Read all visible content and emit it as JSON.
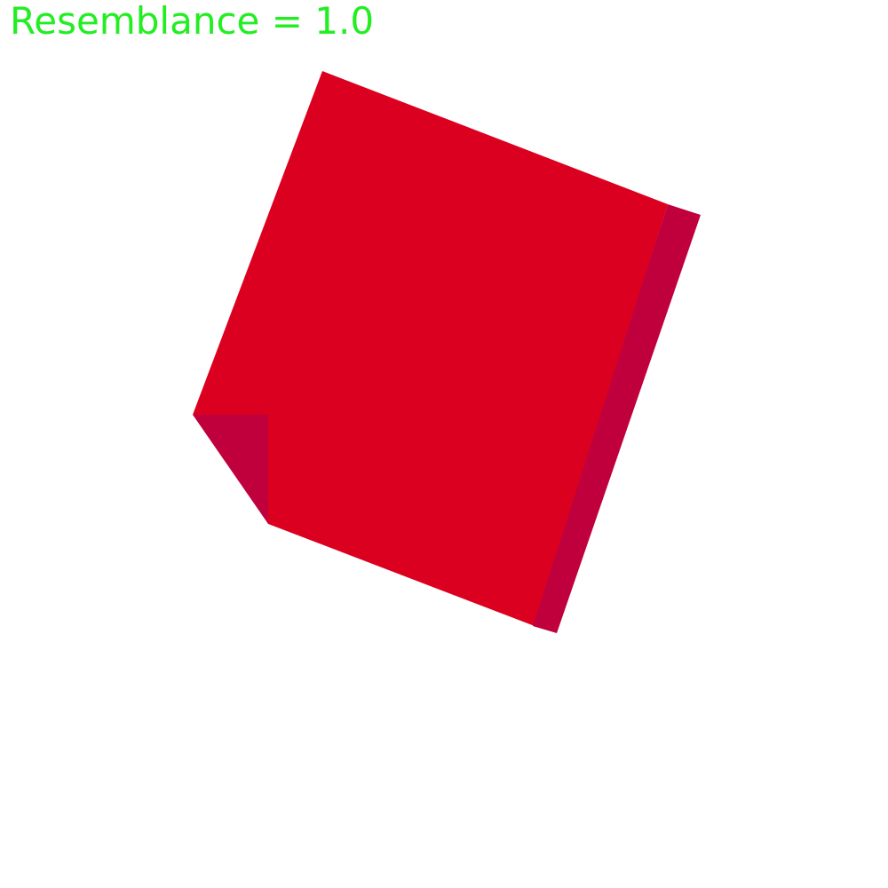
{
  "hud": {
    "resemblance_label": "Resemblance = 1.0",
    "resemblance_value": 1.0
  },
  "colors": {
    "background": "#ffffff",
    "hud_text": "#22ee22",
    "shape_face": "#dc0020",
    "shape_shade": "#c0003c"
  },
  "scene": {
    "shape": "red-square-with-folded-corner",
    "parts": [
      "square-face",
      "right-edge-shade",
      "folded-corner"
    ]
  }
}
